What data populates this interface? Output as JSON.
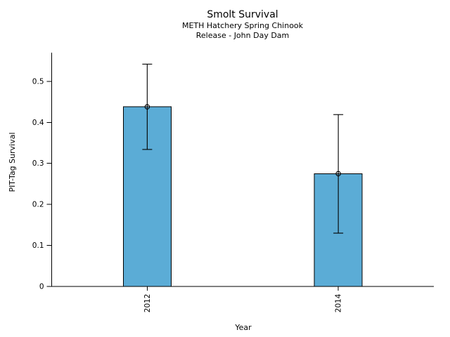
{
  "figure": {
    "background": "#ffffff"
  },
  "chart_data": {
    "type": "bar",
    "title": "Smolt Survival",
    "subtitles": [
      "METH Hatchery Spring Chinook",
      "Release - John Day Dam"
    ],
    "xlabel": "Year",
    "ylabel": "PIT-Tag Survival",
    "categories": [
      "2012",
      "2014"
    ],
    "values": [
      0.438,
      0.275
    ],
    "error_upper": [
      0.542,
      0.419
    ],
    "error_lower": [
      0.334,
      0.13
    ],
    "yticks": [
      0,
      0.1,
      0.2,
      0.3,
      0.4,
      0.5
    ],
    "ytick_labels": [
      "0",
      "0.1",
      "0.2",
      "0.3",
      "0.4",
      "0.5"
    ],
    "ylim": [
      0,
      0.57
    ],
    "grid": false,
    "legend_position": "none",
    "marker": "open-circle",
    "bar_color": "#5BACD6",
    "bar_edge_color": "#000000",
    "errorbar_color": "#000000"
  }
}
